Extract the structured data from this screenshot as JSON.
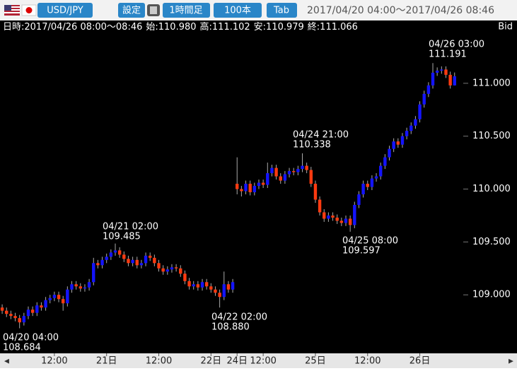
{
  "header": {
    "pair": "USD/JPY",
    "buttons": [
      "設定",
      "1時間足",
      "100本",
      "Tab"
    ],
    "range": "2017/04/20 04:00～2017/04/26 08:46"
  },
  "info": {
    "datetime": "日時:2017/04/26 08:00～08:46",
    "items": [
      "始:110.980",
      "高:111.102",
      "安:110.979",
      "終:111.066"
    ],
    "price_type": "Bid"
  },
  "chart_data": {
    "type": "candlestick",
    "up_color": "#1414ff",
    "down_color": "#ff3a10",
    "xlim": [
      -0.5,
      105.5
    ],
    "ylim": [
      108.447,
      111.48
    ],
    "xticks": [
      {
        "value": 12,
        "label": "12:00"
      },
      {
        "value": 24,
        "label": "21日"
      },
      {
        "value": 36,
        "label": "12:00"
      },
      {
        "value": 48,
        "label": "22日"
      },
      {
        "value": 54,
        "label": "24日"
      },
      {
        "value": 60,
        "label": "12:00"
      },
      {
        "value": 72,
        "label": "25日"
      },
      {
        "value": 84,
        "label": "12:00"
      },
      {
        "value": 96,
        "label": "26日"
      }
    ],
    "yticks": [
      {
        "value": 109,
        "label": "109.000"
      },
      {
        "value": 109.5,
        "label": "109.500"
      },
      {
        "value": 110,
        "label": "110.000"
      },
      {
        "value": 110.5,
        "label": "110.500"
      },
      {
        "value": 111,
        "label": "111.000"
      }
    ],
    "open": [
      108.88,
      108.85,
      108.82,
      108.8,
      108.78,
      108.74,
      108.8,
      108.86,
      108.83,
      108.9,
      108.88,
      108.95,
      108.97,
      109.0,
      108.96,
      108.92,
      109.05,
      109.1,
      109.08,
      109.06,
      109.07,
      109.12,
      109.3,
      109.28,
      109.33,
      109.36,
      109.4,
      109.42,
      109.38,
      109.34,
      109.3,
      109.33,
      109.28,
      109.3,
      109.37,
      109.35,
      109.3,
      109.25,
      109.22,
      109.24,
      109.26,
      109.25,
      109.2,
      109.13,
      109.08,
      109.1,
      109.07,
      109.12,
      109.08,
      109.05,
      109.02,
      108.98,
      109.1,
      109.05,
      110.05,
      110.0,
      109.98,
      110.05,
      109.97,
      110.03,
      110.06,
      110.04,
      110.15,
      110.2,
      110.12,
      110.08,
      110.14,
      110.17,
      110.16,
      110.19,
      110.22,
      110.18,
      110.05,
      109.9,
      109.78,
      109.72,
      109.75,
      109.73,
      109.7,
      109.68,
      109.72,
      109.66,
      109.85,
      109.95,
      110.05,
      110.02,
      110.1,
      110.12,
      110.22,
      110.3,
      110.38,
      110.45,
      110.42,
      110.5,
      110.55,
      110.6,
      110.66,
      110.8,
      110.9,
      110.98,
      111.1,
      111.12,
      111.13,
      111.08,
      110.98
    ],
    "high": [
      108.91,
      108.88,
      108.85,
      108.83,
      108.81,
      108.83,
      108.89,
      108.89,
      108.93,
      108.93,
      108.98,
      109.0,
      109.03,
      109.03,
      108.99,
      109.08,
      109.13,
      109.13,
      109.11,
      109.1,
      109.15,
      109.35,
      109.33,
      109.36,
      109.39,
      109.43,
      109.485,
      109.45,
      109.41,
      109.37,
      109.36,
      109.36,
      109.33,
      109.4,
      109.4,
      109.38,
      109.33,
      109.28,
      109.27,
      109.29,
      109.29,
      109.28,
      109.23,
      109.16,
      109.13,
      109.13,
      109.15,
      109.15,
      109.11,
      109.08,
      109.05,
      109.22,
      109.13,
      109.15,
      110.3,
      110.03,
      110.08,
      110.08,
      110.06,
      110.09,
      110.09,
      110.25,
      110.23,
      110.23,
      110.15,
      110.17,
      110.2,
      110.2,
      110.22,
      110.338,
      110.25,
      110.21,
      110.08,
      109.93,
      109.81,
      109.78,
      109.78,
      109.76,
      109.73,
      109.75,
      109.75,
      109.88,
      109.98,
      110.08,
      110.08,
      110.13,
      110.15,
      110.25,
      110.33,
      110.41,
      110.48,
      110.48,
      110.53,
      110.58,
      110.63,
      110.69,
      110.83,
      110.93,
      111.01,
      111.191,
      111.15,
      111.16,
      111.16,
      111.11,
      111.102
    ],
    "low": [
      108.82,
      108.79,
      108.77,
      108.75,
      108.684,
      108.71,
      108.77,
      108.8,
      108.8,
      108.85,
      108.85,
      108.92,
      108.94,
      108.93,
      108.85,
      108.89,
      109.02,
      109.05,
      109.03,
      109.03,
      109.04,
      109.09,
      109.25,
      109.25,
      109.3,
      109.33,
      109.37,
      109.35,
      109.31,
      109.27,
      109.27,
      109.25,
      109.25,
      109.27,
      109.32,
      109.27,
      109.22,
      109.19,
      109.19,
      109.21,
      109.22,
      109.17,
      109.1,
      109.05,
      109.05,
      109.04,
      109.04,
      109.05,
      109.02,
      108.99,
      108.88,
      108.95,
      109.02,
      109.02,
      109.95,
      109.93,
      109.95,
      109.94,
      109.94,
      110.0,
      110.01,
      110.01,
      110.12,
      110.09,
      110.05,
      110.05,
      110.11,
      110.13,
      110.13,
      110.16,
      110.15,
      110.02,
      109.87,
      109.75,
      109.69,
      109.69,
      109.7,
      109.67,
      109.65,
      109.65,
      109.597,
      109.63,
      109.82,
      109.92,
      109.99,
      109.99,
      110.07,
      110.09,
      110.19,
      110.27,
      110.35,
      110.39,
      110.39,
      110.47,
      110.52,
      110.57,
      110.63,
      110.77,
      110.87,
      110.95,
      111.07,
      111.09,
      111.05,
      110.95,
      110.979
    ],
    "close": [
      108.85,
      108.82,
      108.8,
      108.78,
      108.74,
      108.8,
      108.86,
      108.83,
      108.9,
      108.88,
      108.95,
      108.97,
      109.0,
      108.96,
      108.92,
      109.05,
      109.1,
      109.08,
      109.06,
      109.07,
      109.12,
      109.3,
      109.28,
      109.33,
      109.36,
      109.4,
      109.42,
      109.38,
      109.34,
      109.3,
      109.33,
      109.28,
      109.3,
      109.37,
      109.35,
      109.3,
      109.25,
      109.22,
      109.24,
      109.26,
      109.25,
      109.2,
      109.13,
      109.08,
      109.1,
      109.07,
      109.12,
      109.08,
      109.05,
      109.02,
      108.98,
      109.1,
      109.05,
      109.12,
      110.0,
      109.98,
      110.05,
      109.97,
      110.03,
      110.06,
      110.04,
      110.15,
      110.2,
      110.12,
      110.08,
      110.14,
      110.17,
      110.16,
      110.19,
      110.22,
      110.18,
      110.05,
      109.9,
      109.78,
      109.72,
      109.75,
      109.73,
      109.7,
      109.68,
      109.72,
      109.66,
      109.85,
      109.95,
      110.05,
      110.02,
      110.1,
      110.12,
      110.22,
      110.3,
      110.38,
      110.45,
      110.42,
      110.5,
      110.55,
      110.6,
      110.66,
      110.8,
      110.9,
      110.98,
      111.1,
      111.12,
      111.13,
      111.08,
      110.98,
      111.066
    ],
    "annotations": [
      {
        "label": "04/20 04:00",
        "value": 108.684
      },
      {
        "label": "04/21 02:00",
        "value": 109.485
      },
      {
        "label": "04/22 02:00",
        "value": 108.88,
        "value_label": "108.880"
      },
      {
        "label": "04/24 21:00",
        "value": 110.338
      },
      {
        "label": "04/25 08:00",
        "value": 109.597
      },
      {
        "label": "04/26 03:00",
        "value": 111.191
      }
    ]
  }
}
